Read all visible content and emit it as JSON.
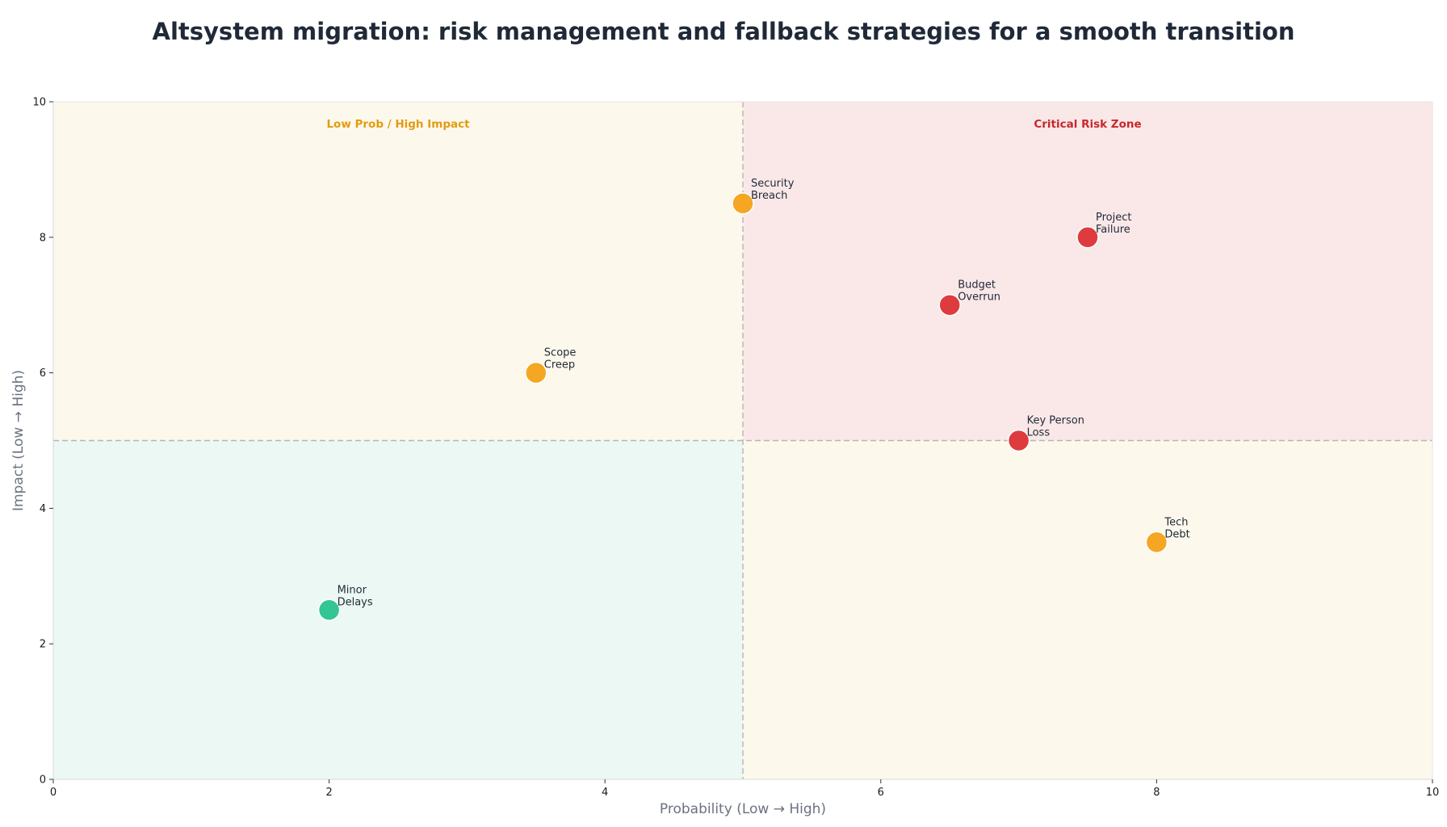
{
  "title": "Altsystem migration: risk management and fallback strategies for a smooth transition",
  "chart_data": {
    "type": "scatter",
    "title": "Altsystem migration: risk management and fallback strategies for a smooth transition",
    "xlabel": "Probability (Low → High)",
    "ylabel": "Impact (Low → High)",
    "xlim": [
      0,
      10
    ],
    "ylim": [
      0,
      10
    ],
    "xticks": [
      0,
      2,
      4,
      6,
      8,
      10
    ],
    "yticks": [
      0,
      2,
      4,
      6,
      8,
      10
    ],
    "grid": false,
    "quadrant_split": {
      "x": 5,
      "y": 5
    },
    "quadrants": [
      {
        "name": "low-prob-high-impact",
        "label": "Low Prob / High Impact",
        "color": "#fdf8ec",
        "label_color": "#e39b12"
      },
      {
        "name": "critical",
        "label": "Critical Risk Zone",
        "color": "#fae8e8",
        "label_color": "#c9262d"
      },
      {
        "name": "low-low",
        "label": "",
        "color": "#ecf8f3",
        "label_color": ""
      },
      {
        "name": "high-prob-low-impact",
        "label": "",
        "color": "#fdf8ec",
        "label_color": ""
      }
    ],
    "points": [
      {
        "label": "Security\nBreach",
        "x": 5,
        "y": 8.5,
        "color": "#f5a623"
      },
      {
        "label": "Project\nFailure",
        "x": 7.5,
        "y": 8,
        "color": "#de3b3f"
      },
      {
        "label": "Budget\nOverrun",
        "x": 6.5,
        "y": 7,
        "color": "#de3b3f"
      },
      {
        "label": "Scope\nCreep",
        "x": 3.5,
        "y": 6,
        "color": "#f5a623"
      },
      {
        "label": "Key Person\nLoss",
        "x": 7,
        "y": 5,
        "color": "#de3b3f"
      },
      {
        "label": "Tech\nDebt",
        "x": 8,
        "y": 3.5,
        "color": "#f5a623"
      },
      {
        "label": "Minor\nDelays",
        "x": 2,
        "y": 2.5,
        "color": "#34c595"
      }
    ]
  }
}
